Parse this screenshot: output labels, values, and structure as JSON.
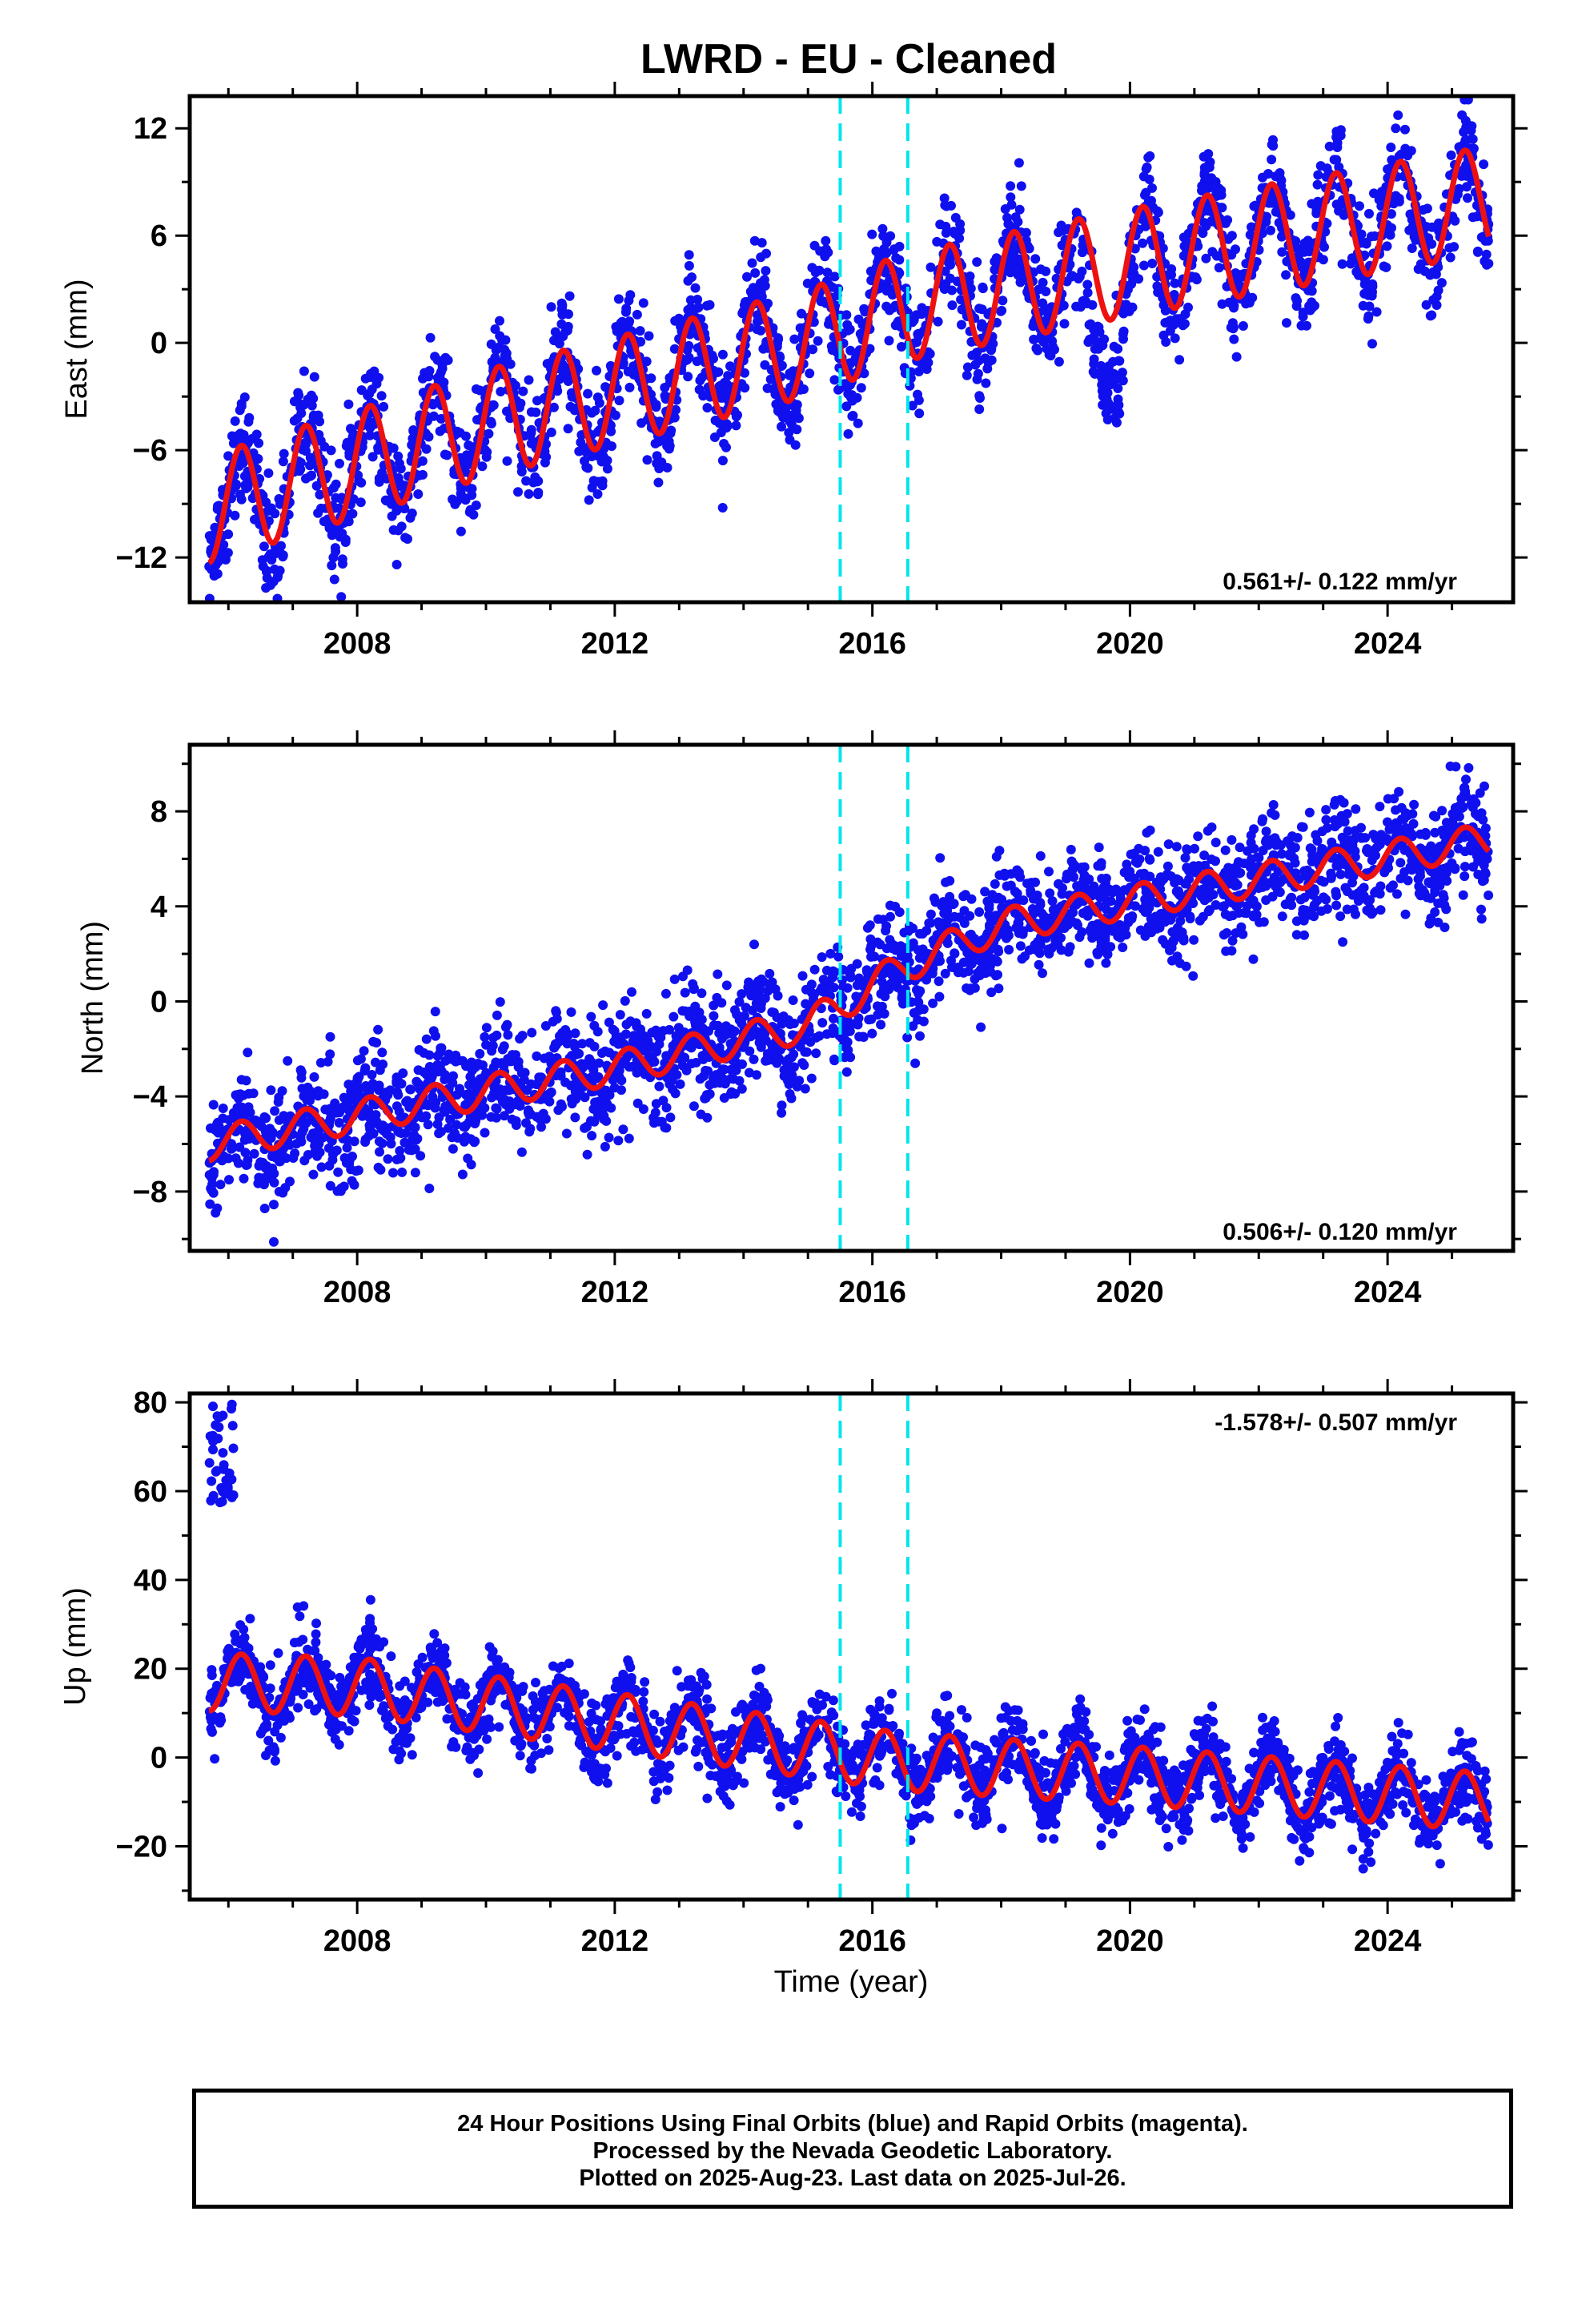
{
  "title": "LWRD  - EU - Cleaned",
  "colors": {
    "data": "#1010ee",
    "model": "#ee1111",
    "offsets": "#00e5ee",
    "frame": "#000000"
  },
  "footer": {
    "line1": "24 Hour Positions Using Final Orbits (blue) and Rapid Orbits (magenta).",
    "line2": "Processed by the Nevada Geodetic Laboratory.",
    "line3": "Plotted on 2025-Aug-23. Last data on 2025-Jul-26."
  },
  "chart_data": [
    {
      "type": "scatter",
      "component": "east",
      "ylabel": "East (mm)",
      "xlabel": "",
      "xlim": [
        2005.4,
        2025.95
      ],
      "ylim": [
        -14.5,
        13.8
      ],
      "x_ticks": [
        2008,
        2012,
        2016,
        2020,
        2024
      ],
      "y_ticks": [
        -12,
        -6,
        0,
        6,
        12
      ],
      "data_start": 2005.7,
      "data_end": 2025.57,
      "rate_text": "0.561+/- 0.122 mm/yr",
      "rate_position": "bottom-right",
      "offsets": [
        2015.5,
        2016.55
      ],
      "model_key_points": [
        [
          2005.7,
          -9.3
        ],
        [
          2010,
          -4.5
        ],
        [
          2015,
          0.0
        ],
        [
          2016.5,
          2.0
        ],
        [
          2020,
          4.5
        ],
        [
          2025.57,
          8.0
        ]
      ],
      "seasonal_amplitude": 3.0,
      "scatter_noise": 1.5,
      "anomaly": {
        "start": 2019.0,
        "end": 2020.2,
        "model_gap": true,
        "data_dip": -4.0
      }
    },
    {
      "type": "scatter",
      "component": "north",
      "ylabel": "North (mm)",
      "xlabel": "",
      "xlim": [
        2005.4,
        2025.95
      ],
      "ylim": [
        -10.5,
        10.8
      ],
      "x_ticks": [
        2008,
        2012,
        2016,
        2020,
        2024
      ],
      "y_ticks": [
        -8,
        -4,
        0,
        4,
        8
      ],
      "data_start": 2005.7,
      "data_end": 2025.57,
      "rate_text": "0.506+/- 0.120 mm/yr",
      "rate_position": "bottom-right",
      "offsets": [
        2015.5,
        2016.55
      ],
      "model_key_points": [
        [
          2005.7,
          -6.0
        ],
        [
          2010,
          -3.8
        ],
        [
          2012,
          -2.8
        ],
        [
          2015,
          -1.0
        ],
        [
          2016.5,
          1.5
        ],
        [
          2018,
          3.2
        ],
        [
          2020,
          4.2
        ],
        [
          2025.57,
          6.8
        ]
      ],
      "seasonal_amplitude": 0.7,
      "scatter_noise": 1.2
    },
    {
      "type": "scatter",
      "component": "up",
      "ylabel": "Up (mm)",
      "xlabel": "Time (year)",
      "xlim": [
        2005.4,
        2025.95
      ],
      "ylim": [
        -32.0,
        82.0
      ],
      "x_ticks": [
        2008,
        2012,
        2016,
        2020,
        2024
      ],
      "y_ticks": [
        -20,
        0,
        20,
        40,
        60,
        80
      ],
      "data_start": 2005.7,
      "data_end": 2025.57,
      "rate_text": "-1.578+/- 0.507 mm/yr",
      "rate_position": "top-right",
      "offsets": [
        2015.5,
        2016.55
      ],
      "model_key_points": [
        [
          2005.7,
          17.0
        ],
        [
          2008,
          16.0
        ],
        [
          2011.5,
          9.0
        ],
        [
          2015,
          2.0
        ],
        [
          2016.5,
          -1.0
        ],
        [
          2020,
          -4.0
        ],
        [
          2025.57,
          -10.0
        ]
      ],
      "seasonal_amplitude": 6.5,
      "scatter_noise": 4.5,
      "early_outliers": {
        "x_range": [
          2005.7,
          2006.1
        ],
        "y_range": [
          57,
          80
        ]
      }
    }
  ]
}
